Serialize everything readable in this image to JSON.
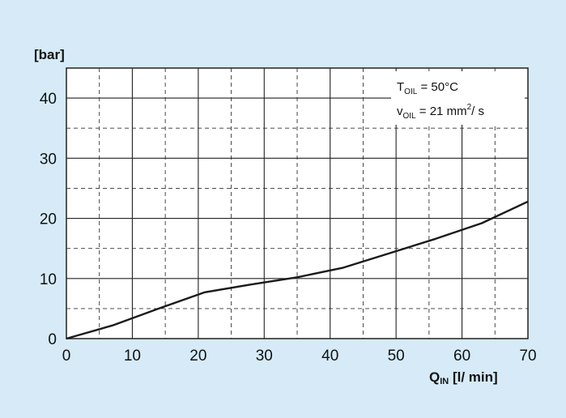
{
  "chart_data": {
    "type": "line",
    "ylabel": "[bar]",
    "xlabel": {
      "main": "Q",
      "sub": "IN",
      "unit": " [l/ min]"
    },
    "xlim": [
      0,
      70
    ],
    "ylim": [
      0,
      45
    ],
    "x_ticks": [
      "0",
      "10",
      "20",
      "30",
      "40",
      "50",
      "60",
      "70"
    ],
    "y_ticks": [
      "0",
      "10",
      "20",
      "30",
      "40"
    ],
    "grid": {
      "major": true,
      "minor_dashed": true
    },
    "annotations": [
      {
        "symbol": "T",
        "sub": "OIL",
        "rest": " = 50°C"
      },
      {
        "symbol": "v",
        "sub": "OIL",
        "rest": " = 21 mm",
        "sup": "2",
        "tail": "/ s"
      }
    ],
    "series": [
      {
        "points": [
          [
            0,
            0
          ],
          [
            7,
            2.2
          ],
          [
            14,
            5
          ],
          [
            21,
            7.7
          ],
          [
            28,
            9
          ],
          [
            35,
            10.2
          ],
          [
            42,
            11.8
          ],
          [
            49,
            14.2
          ],
          [
            56,
            16.6
          ],
          [
            63,
            19.2
          ],
          [
            70,
            22.8
          ]
        ],
        "color": "#1a1a1a"
      }
    ],
    "colors": {
      "background": "#d6ebf7",
      "plot_area": "#ffffff",
      "line": "#1a1a1a"
    }
  }
}
